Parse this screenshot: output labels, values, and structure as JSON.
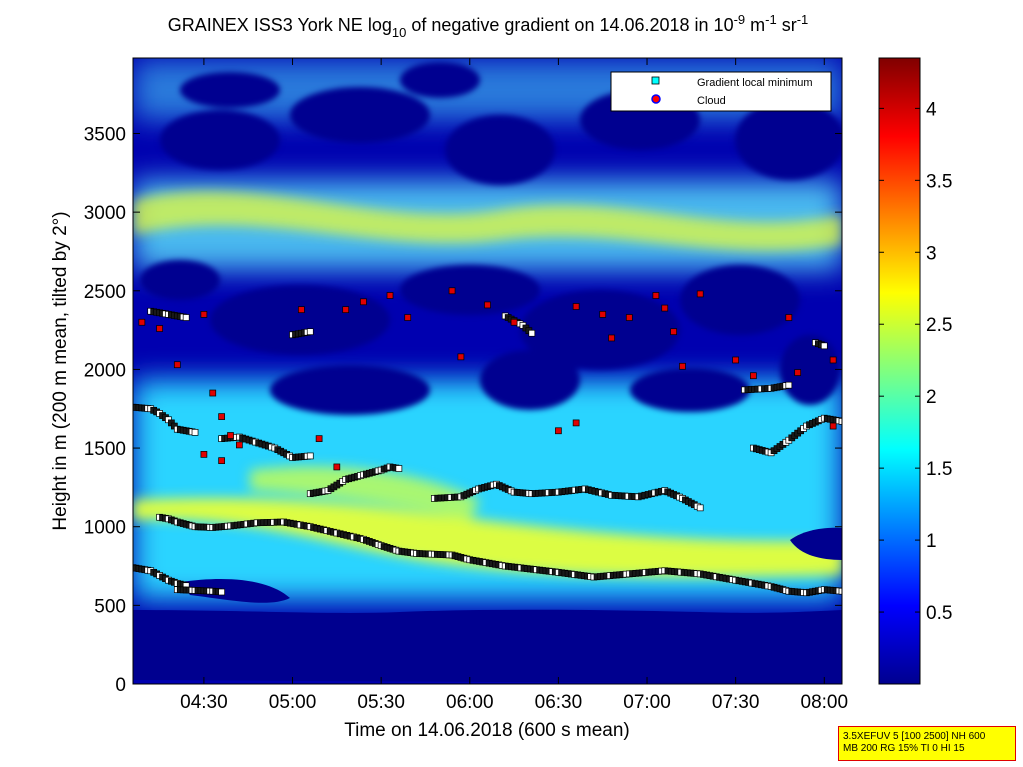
{
  "chart_data": {
    "type": "heatmap",
    "title": {
      "prefix": "GRAINEX ISS3 York NE log",
      "log_sub": "10",
      "middle": " of negative gradient on 14.06.2018 in 10",
      "exp1": "-9",
      "unit1": " m",
      "exp2": "-1",
      "unit2": " sr",
      "exp3": "-1"
    },
    "xlabel": "Time on 14.06.2018 (600 s mean)",
    "ylabel": "Height in m (200 m mean, tilted by 2°)",
    "x_ticks": [
      "04:30",
      "05:00",
      "05:30",
      "06:00",
      "06:30",
      "07:00",
      "07:30",
      "08:00"
    ],
    "x_tick_hours": [
      4.5,
      5.0,
      5.5,
      6.0,
      6.5,
      7.0,
      7.5,
      8.0
    ],
    "xlim_hours": [
      4.1,
      8.1
    ],
    "y_ticks": [
      "0",
      "500",
      "1000",
      "1500",
      "2000",
      "2500",
      "3000",
      "3500"
    ],
    "y_tick_values": [
      0,
      500,
      1000,
      1500,
      2000,
      2500,
      3000,
      3500
    ],
    "ylim": [
      0,
      3980
    ],
    "colorbar": {
      "ticks": [
        "0.5",
        "1",
        "1.5",
        "2",
        "2.5",
        "3",
        "3.5",
        "4"
      ],
      "tick_values": [
        0.5,
        1,
        1.5,
        2,
        2.5,
        3,
        3.5,
        4
      ],
      "range": [
        0,
        4.35
      ],
      "colormap": "jet"
    },
    "legend": {
      "placement": "top-right",
      "entries": [
        {
          "label": "Gradient local minimum",
          "marker": "square",
          "color": "#00ffff"
        },
        {
          "label": "Cloud",
          "marker": "circle",
          "color": "#ff0000",
          "edge": "#0000ff"
        }
      ]
    },
    "grid": false,
    "series": [
      {
        "points": [
          [
            4.1,
            740
          ],
          [
            4.2,
            720
          ],
          [
            4.25,
            690
          ],
          [
            4.3,
            660
          ],
          [
            4.35,
            640
          ],
          [
            4.4,
            625
          ]
        ]
      },
      {
        "points": [
          [
            4.35,
            600
          ],
          [
            4.45,
            595
          ],
          [
            4.55,
            590
          ],
          [
            4.6,
            585
          ]
        ]
      },
      {
        "points": [
          [
            4.25,
            1060
          ],
          [
            4.3,
            1050
          ],
          [
            4.35,
            1030
          ],
          [
            4.45,
            1000
          ],
          [
            4.55,
            995
          ],
          [
            4.65,
            1005
          ],
          [
            4.8,
            1025
          ],
          [
            4.95,
            1030
          ],
          [
            5.1,
            1000
          ],
          [
            5.25,
            960
          ],
          [
            5.4,
            920
          ],
          [
            5.5,
            880
          ],
          [
            5.6,
            845
          ],
          [
            5.7,
            830
          ],
          [
            5.8,
            825
          ],
          [
            5.9,
            820
          ],
          [
            6.0,
            790
          ],
          [
            6.2,
            750
          ],
          [
            6.5,
            710
          ],
          [
            6.7,
            680
          ],
          [
            6.9,
            700
          ],
          [
            7.1,
            720
          ],
          [
            7.3,
            700
          ],
          [
            7.5,
            660
          ],
          [
            7.7,
            620
          ],
          [
            7.8,
            590
          ],
          [
            7.9,
            580
          ],
          [
            8.0,
            600
          ],
          [
            8.1,
            590
          ]
        ]
      },
      {
        "points": [
          [
            5.1,
            1210
          ],
          [
            5.2,
            1230
          ],
          [
            5.3,
            1300
          ],
          [
            5.4,
            1330
          ],
          [
            5.5,
            1360
          ],
          [
            5.55,
            1380
          ],
          [
            5.6,
            1370
          ]
        ]
      },
      {
        "points": [
          [
            5.8,
            1180
          ],
          [
            5.95,
            1190
          ],
          [
            6.05,
            1240
          ],
          [
            6.15,
            1270
          ],
          [
            6.25,
            1220
          ],
          [
            6.35,
            1210
          ],
          [
            6.5,
            1220
          ],
          [
            6.65,
            1240
          ],
          [
            6.8,
            1200
          ],
          [
            6.95,
            1190
          ],
          [
            7.1,
            1230
          ],
          [
            7.2,
            1180
          ],
          [
            7.3,
            1120
          ]
        ]
      },
      {
        "points": [
          [
            4.1,
            1760
          ],
          [
            4.2,
            1750
          ],
          [
            4.25,
            1720
          ],
          [
            4.3,
            1680
          ],
          [
            4.35,
            1620
          ],
          [
            4.45,
            1600
          ]
        ]
      },
      {
        "points": [
          [
            4.6,
            1560
          ],
          [
            4.7,
            1570
          ],
          [
            4.9,
            1500
          ],
          [
            5.0,
            1440
          ],
          [
            5.1,
            1450
          ]
        ]
      },
      {
        "points": [
          [
            7.6,
            1500
          ],
          [
            7.7,
            1470
          ],
          [
            7.8,
            1550
          ],
          [
            7.9,
            1640
          ],
          [
            8.0,
            1690
          ],
          [
            8.1,
            1670
          ]
        ]
      },
      {
        "points": [
          [
            7.55,
            1870
          ],
          [
            7.7,
            1880
          ],
          [
            7.8,
            1900
          ]
        ]
      },
      {
        "points": [
          [
            4.2,
            2370
          ],
          [
            4.3,
            2350
          ],
          [
            4.4,
            2330
          ]
        ]
      },
      {
        "points": [
          [
            5.0,
            2220
          ],
          [
            5.1,
            2240
          ]
        ]
      },
      {
        "points": [
          [
            6.2,
            2340
          ],
          [
            6.3,
            2280
          ],
          [
            6.35,
            2230
          ]
        ]
      },
      {
        "points": [
          [
            7.95,
            2170
          ],
          [
            8.0,
            2150
          ]
        ]
      }
    ],
    "clouds": [
      [
        4.15,
        2300
      ],
      [
        4.25,
        2260
      ],
      [
        4.5,
        2350
      ],
      [
        4.55,
        1850
      ],
      [
        4.6,
        1700
      ],
      [
        4.65,
        1580
      ],
      [
        4.7,
        1520
      ],
      [
        4.5,
        1460
      ],
      [
        4.6,
        1420
      ],
      [
        5.25,
        1380
      ],
      [
        5.3,
        2380
      ],
      [
        5.4,
        2430
      ],
      [
        5.55,
        2470
      ],
      [
        5.65,
        2330
      ],
      [
        5.9,
        2500
      ],
      [
        6.1,
        2410
      ],
      [
        6.25,
        2300
      ],
      [
        6.6,
        2400
      ],
      [
        6.75,
        2350
      ],
      [
        6.8,
        2200
      ],
      [
        6.9,
        2330
      ],
      [
        7.05,
        2470
      ],
      [
        7.1,
        2390
      ],
      [
        7.15,
        2240
      ],
      [
        7.2,
        2020
      ],
      [
        7.3,
        2480
      ],
      [
        7.5,
        2060
      ],
      [
        7.6,
        1960
      ],
      [
        7.8,
        2330
      ],
      [
        7.85,
        1980
      ],
      [
        8.05,
        2060
      ],
      [
        8.05,
        1640
      ],
      [
        6.5,
        1610
      ],
      [
        6.6,
        1660
      ],
      [
        4.35,
        2030
      ],
      [
        5.15,
        1560
      ],
      [
        5.05,
        2380
      ],
      [
        5.95,
        2080
      ]
    ]
  },
  "info_box": {
    "line1": "3.5XEFUV 5 [100 2500] NH 600",
    "line2": "MB 200 RG 15% TI 0 HI 15"
  }
}
